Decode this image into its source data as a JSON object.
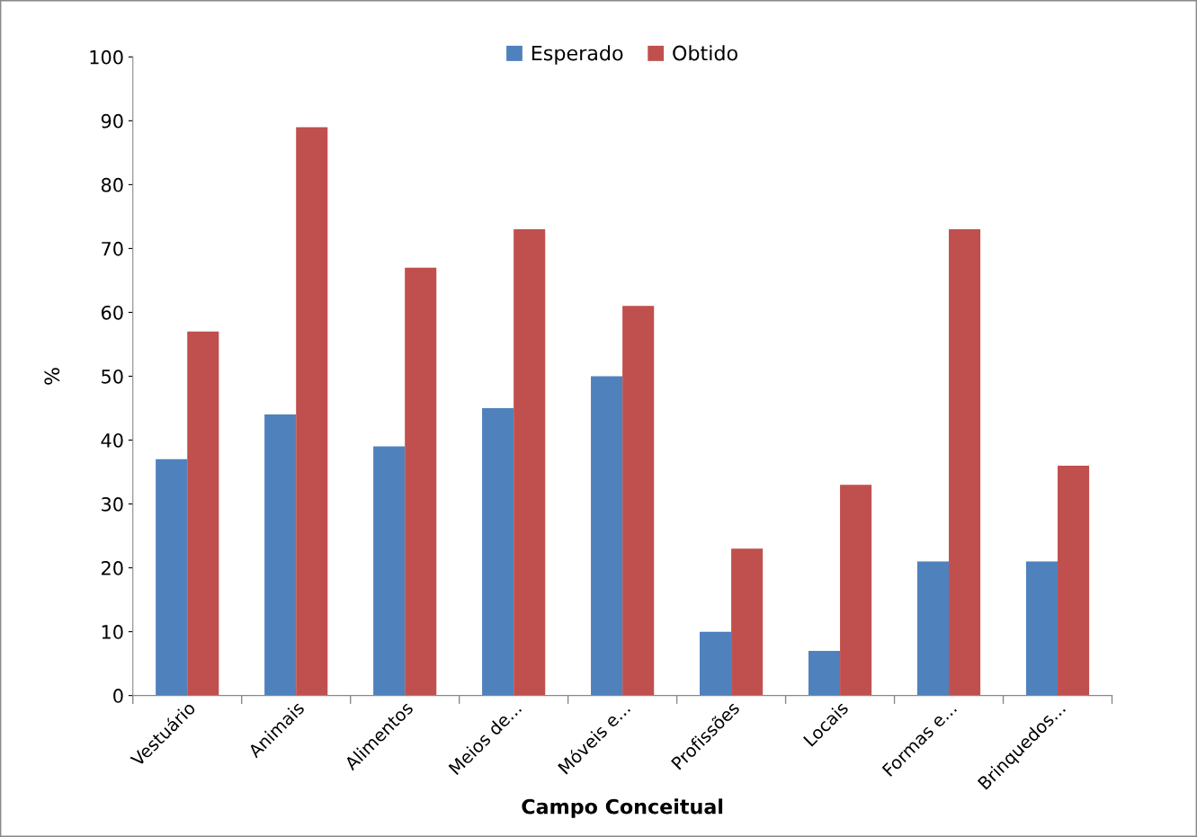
{
  "chart_data": {
    "type": "bar",
    "xlabel": "Campo Conceitual",
    "ylabel": "%",
    "categories": [
      "Vestuário",
      "Animais",
      "Alimentos",
      "Meios de...",
      "Móveis e...",
      "Profissões",
      "Locais",
      "Formas e...",
      "Brinquedos..."
    ],
    "series": [
      {
        "name": "Esperado",
        "color": "#4f81bd",
        "values": [
          37,
          44,
          39,
          45,
          50,
          10,
          7,
          21,
          21
        ]
      },
      {
        "name": "Obtido",
        "color": "#c0504d",
        "values": [
          57,
          89,
          67,
          73,
          61,
          23,
          33,
          73,
          36
        ]
      }
    ],
    "ylim": [
      0,
      100
    ],
    "yticks": [
      0,
      10,
      20,
      30,
      40,
      50,
      60,
      70,
      80,
      90,
      100
    ],
    "grid": false,
    "legend": "top"
  }
}
